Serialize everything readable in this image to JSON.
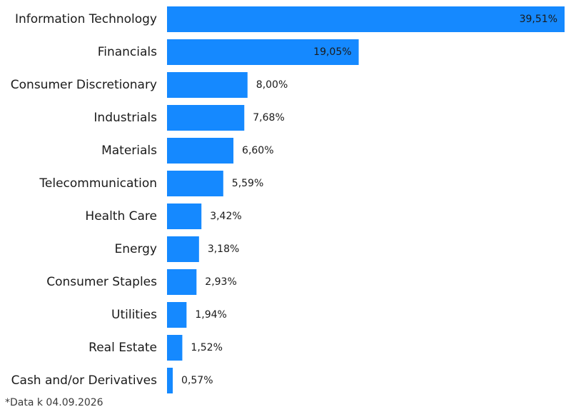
{
  "chart_data": {
    "type": "bar",
    "orientation": "horizontal",
    "categories": [
      "Information Technology",
      "Financials",
      "Consumer Discretionary",
      "Industrials",
      "Materials",
      "Telecommunication",
      "Health Care",
      "Energy",
      "Consumer Staples",
      "Utilities",
      "Real Estate",
      "Cash and/or Derivatives"
    ],
    "values": [
      39.51,
      19.05,
      8.0,
      7.68,
      6.6,
      5.59,
      3.42,
      3.18,
      2.93,
      1.94,
      1.52,
      0.57
    ],
    "value_labels": [
      "39,51%",
      "19,05%",
      "8,00%",
      "7,68%",
      "6,60%",
      "5,59%",
      "3,42%",
      "3,18%",
      "2,93%",
      "1,94%",
      "1,52%",
      "0,57%"
    ],
    "xlim": [
      0,
      39.51
    ],
    "grid": false,
    "bar_color": "#1589FF"
  },
  "footnote": "*Data k 04.09.2026"
}
